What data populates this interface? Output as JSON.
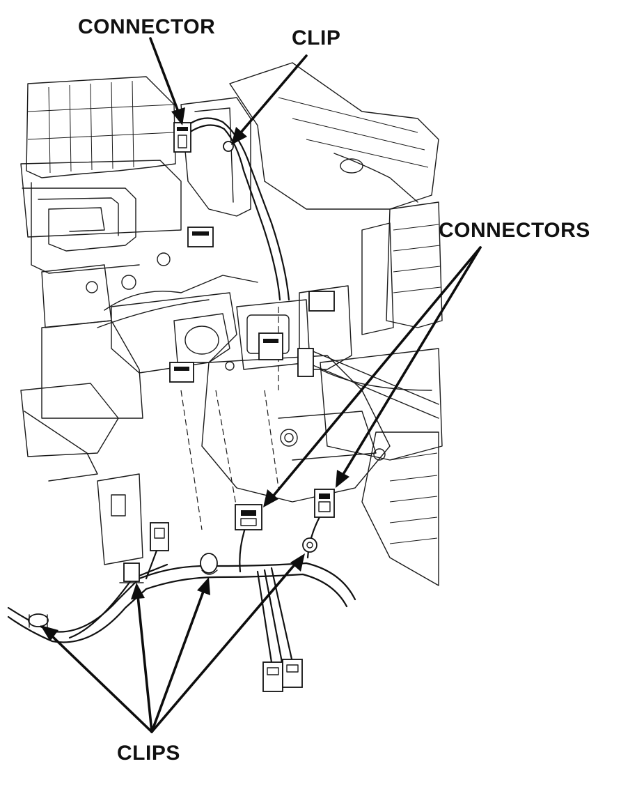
{
  "labels": {
    "connector": "CONNECTOR",
    "clip": "CLIP",
    "connectors": "CONNECTORS",
    "clips": "CLIPS"
  }
}
